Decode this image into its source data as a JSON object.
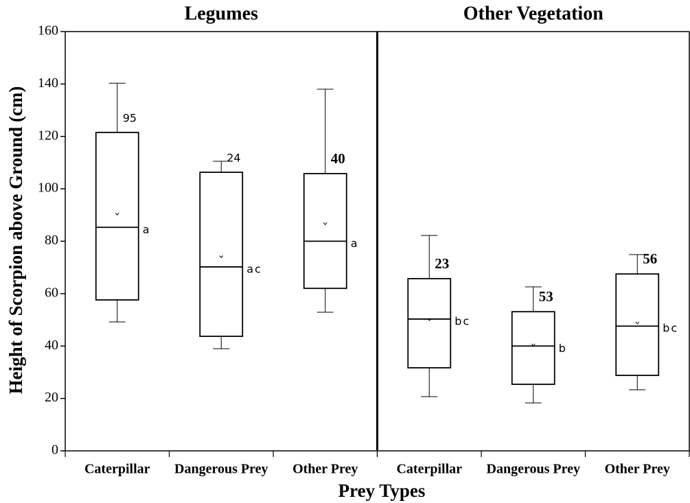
{
  "chart_data": {
    "type": "box",
    "ylabel": "Height of Scorpion above Ground (cm)",
    "xlabel": "Prey Types",
    "ylim": [
      0,
      160
    ],
    "yticks": [
      0,
      20,
      40,
      60,
      80,
      100,
      120,
      140,
      160
    ],
    "color": "#000000",
    "panels": [
      {
        "title": "Legumes",
        "categories": [
          "Caterpillar",
          "Dangerous Prey",
          "Other Prey"
        ],
        "whisker_low": [
          49.2,
          39,
          52.9
        ],
        "q1": [
          57.6,
          43.7,
          62
        ],
        "median": [
          85.3,
          70.2,
          80
        ],
        "q3": [
          121.5,
          106.3,
          105.8
        ],
        "whisker_high": [
          140.3,
          110.5,
          138
        ],
        "mean": [
          90.3,
          74,
          86.6
        ],
        "counts": [
          95,
          24,
          40
        ],
        "counts_bold": [
          false,
          false,
          true
        ],
        "letters": [
          "a",
          "ac",
          "a"
        ]
      },
      {
        "title": "Other Vegetation",
        "categories": [
          "Caterpillar",
          "Dangerous Prey",
          "Other Prey"
        ],
        "whisker_low": [
          20.7,
          18.3,
          23.3
        ],
        "q1": [
          31.7,
          25.4,
          28.8
        ],
        "median": [
          50.3,
          40,
          47.6
        ],
        "q3": [
          65.7,
          53.1,
          67.5
        ],
        "whisker_high": [
          82.2,
          62.6,
          74.9
        ],
        "mean": [
          50,
          40.3,
          48.7
        ],
        "counts": [
          23,
          53,
          56
        ],
        "counts_bold": [
          true,
          true,
          true
        ],
        "letters": [
          "bc",
          "b",
          "bc"
        ]
      }
    ]
  }
}
